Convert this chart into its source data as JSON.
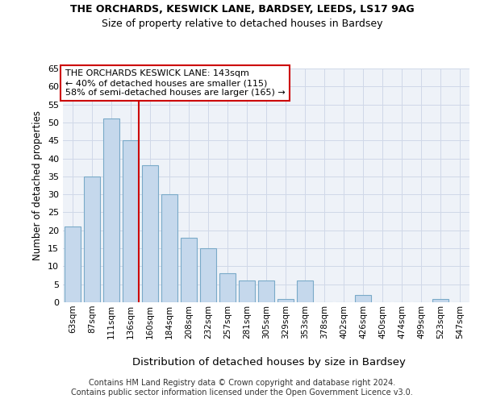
{
  "title1": "THE ORCHARDS, KESWICK LANE, BARDSEY, LEEDS, LS17 9AG",
  "title2": "Size of property relative to detached houses in Bardsey",
  "xlabel": "Distribution of detached houses by size in Bardsey",
  "ylabel": "Number of detached properties",
  "categories": [
    "63sqm",
    "87sqm",
    "111sqm",
    "136sqm",
    "160sqm",
    "184sqm",
    "208sqm",
    "232sqm",
    "257sqm",
    "281sqm",
    "305sqm",
    "329sqm",
    "353sqm",
    "378sqm",
    "402sqm",
    "426sqm",
    "450sqm",
    "474sqm",
    "499sqm",
    "523sqm",
    "547sqm"
  ],
  "values": [
    21,
    35,
    51,
    45,
    38,
    30,
    18,
    15,
    8,
    6,
    6,
    1,
    6,
    0,
    0,
    2,
    0,
    0,
    0,
    1,
    0
  ],
  "bar_color": "#c5d8ec",
  "bar_edge_color": "#7aaac8",
  "highlight_bar_index": 3,
  "highlight_line_color": "#cc0000",
  "grid_color": "#d0d8e8",
  "background_color": "#eef2f8",
  "ylim": [
    0,
    65
  ],
  "yticks": [
    0,
    5,
    10,
    15,
    20,
    25,
    30,
    35,
    40,
    45,
    50,
    55,
    60,
    65
  ],
  "annotation_lines": [
    "THE ORCHARDS KESWICK LANE: 143sqm",
    "← 40% of detached houses are smaller (115)",
    "58% of semi-detached houses are larger (165) →"
  ],
  "footer1": "Contains HM Land Registry data © Crown copyright and database right 2024.",
  "footer2": "Contains public sector information licensed under the Open Government Licence v3.0."
}
